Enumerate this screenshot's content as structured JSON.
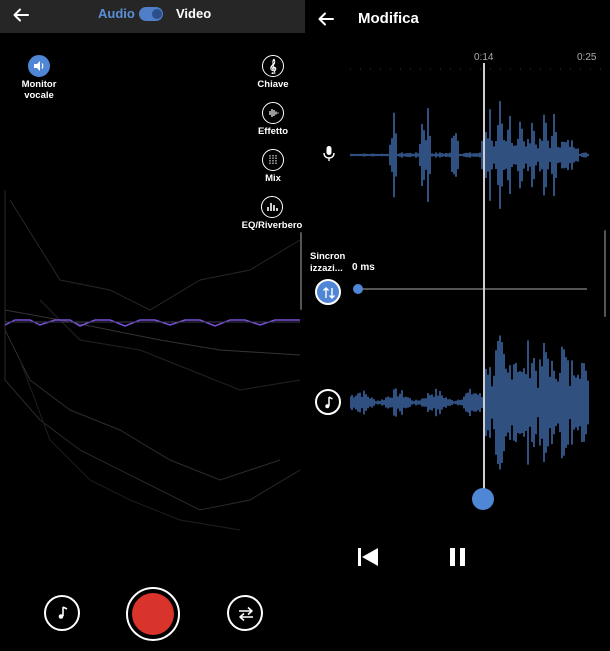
{
  "left": {
    "toggle": {
      "audio_label": "Audio",
      "video_label": "Video",
      "selected": "Audio"
    },
    "voice_monitor": {
      "label": "Monitor vocale",
      "icon": "speaker-icon"
    },
    "tools": [
      {
        "label": "Chiave",
        "icon": "treble-clef-icon"
      },
      {
        "label": "Effetto",
        "icon": "waveform-icon"
      },
      {
        "label": "Mix",
        "icon": "mixer-icon"
      },
      {
        "label": "EQ/Riverbero",
        "icon": "equalizer-icon"
      }
    ],
    "bottom": {
      "music_icon": "music-note-icon",
      "record_icon": "record-icon",
      "swap_icon": "swap-arrows-icon"
    }
  },
  "right": {
    "title": "Modifica",
    "time_mid": "0:14",
    "time_end": "0:25",
    "sync_label": "Sincron izzazi...",
    "sync_value": "0 ms",
    "playback": {
      "prev_icon": "skip-previous-icon",
      "pause_icon": "pause-icon"
    }
  },
  "colors": {
    "accent": "#4f86d6",
    "record": "#d9342b",
    "topbar": "#262626"
  }
}
